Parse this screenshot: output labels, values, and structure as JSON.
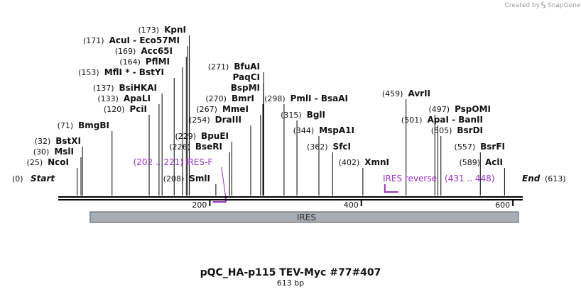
{
  "credit": {
    "text": "Created by",
    "brand": "SnapGene"
  },
  "sequence": {
    "title": "pQC_HA-p115 TEV-Myc #77#407",
    "length_label": "613 bp",
    "length": 613
  },
  "ends": {
    "start": {
      "pos": "(0)",
      "name": "Start"
    },
    "end": {
      "name": "End",
      "pos": "(613)"
    }
  },
  "ticks": [
    {
      "value": 200,
      "label": "200"
    },
    {
      "value": 400,
      "label": "400"
    },
    {
      "value": 600,
      "label": "600"
    }
  ],
  "feature": {
    "name": "IRES",
    "start": 42,
    "end": 613
  },
  "primers": [
    {
      "name": "IRES-F",
      "range": "(202 .. 221)",
      "start": 202,
      "end": 221,
      "direction": "forward"
    },
    {
      "name": "IRES reverse",
      "range": "(431 .. 448)",
      "start": 431,
      "end": 448,
      "direction": "reverse"
    }
  ],
  "sites": [
    {
      "pos": "(25)",
      "name": "NcoI",
      "loc": 25
    },
    {
      "pos": "(30)",
      "name": "MslI",
      "loc": 30
    },
    {
      "pos": "(32)",
      "name": "BstXI",
      "loc": 32
    },
    {
      "pos": "(71)",
      "name": "BmgBI",
      "loc": 71
    },
    {
      "pos": "(120)",
      "name": "PciI",
      "loc": 120
    },
    {
      "pos": "(133)",
      "name": "ApaLI",
      "loc": 133
    },
    {
      "pos": "(137)",
      "name": "BsiHKAI",
      "loc": 137
    },
    {
      "pos": "(153)",
      "name": "MflI * - BstYI",
      "loc": 153
    },
    {
      "pos": "(164)",
      "name": "PflMI",
      "loc": 164
    },
    {
      "pos": "(169)",
      "name": "Acc65I",
      "loc": 169
    },
    {
      "pos": "(171)",
      "name": "AcuI  - Eco57MI",
      "loc": 171
    },
    {
      "pos": "(173)",
      "name": "KpnI",
      "loc": 173
    },
    {
      "pos": "(208)",
      "name": "SmlI",
      "loc": 208
    },
    {
      "pos": "(226)",
      "name": "BseRI",
      "loc": 226
    },
    {
      "pos": "(229)",
      "name": "BpuEI",
      "loc": 229
    },
    {
      "pos": "(254)",
      "name": "DraIII",
      "loc": 254
    },
    {
      "pos": "(267)",
      "name": "MmeI",
      "loc": 267
    },
    {
      "pos": "(270)",
      "name": "BmrI",
      "loc": 270
    },
    {
      "pos": "",
      "name": "BspMI",
      "loc": 271
    },
    {
      "pos": "",
      "name": "PaqCI",
      "loc": 271
    },
    {
      "pos": "(271)",
      "name": "BfuAI",
      "loc": 271
    },
    {
      "pos": "(298)",
      "name": "PmlI  - BsaAI",
      "loc": 298
    },
    {
      "pos": "(315)",
      "name": "BglI",
      "loc": 315
    },
    {
      "pos": "(344)",
      "name": "MspA1I",
      "loc": 344
    },
    {
      "pos": "(362)",
      "name": "SfcI",
      "loc": 362
    },
    {
      "pos": "(402)",
      "name": "XmnI",
      "loc": 402
    },
    {
      "pos": "(459)",
      "name": "AvrII",
      "loc": 459
    },
    {
      "pos": "(497)",
      "name": "PspOMI",
      "loc": 497
    },
    {
      "pos": "(501)",
      "name": "ApaI  - BanII",
      "loc": 501
    },
    {
      "pos": "(505)",
      "name": "BsrDI",
      "loc": 505
    },
    {
      "pos": "(557)",
      "name": "BsrFI",
      "loc": 557
    },
    {
      "pos": "(589)",
      "name": "AclI",
      "loc": 589
    }
  ],
  "colors": {
    "backbone": "#000000",
    "feature_fill": "#a9aeb4",
    "feature_stroke": "#555555",
    "primer": "#9b32c8",
    "site_line": "#000000",
    "credit": "#9a9a9a"
  }
}
